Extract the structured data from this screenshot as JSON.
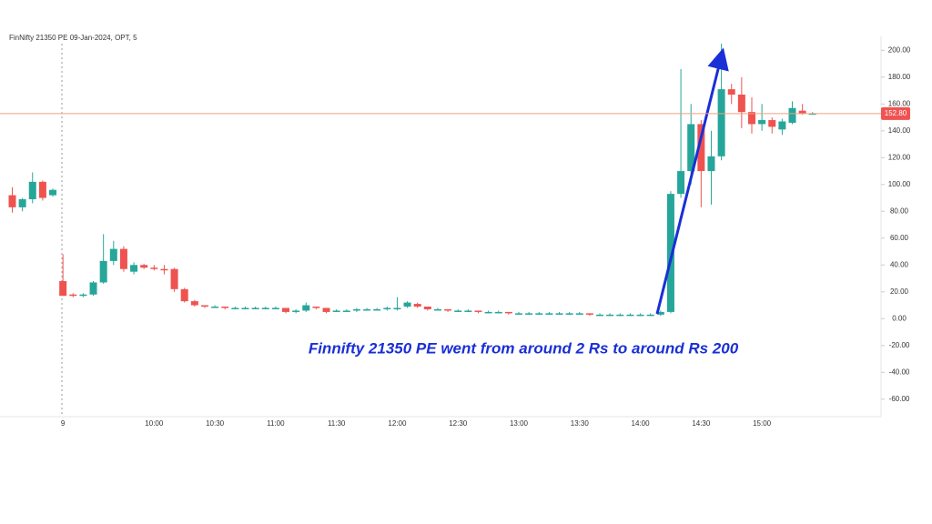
{
  "chart_data": {
    "type": "candlestick",
    "title": "FinNifty 21350 PE 09-Jan-2024, OPT, 5",
    "annotation": "Finnifty 21350 PE went from around 2 Rs to around Rs 200",
    "categories": [
      null,
      null,
      null,
      null,
      null,
      "9",
      null,
      null,
      null,
      null,
      null,
      null,
      null,
      null,
      "10:00",
      null,
      null,
      null,
      null,
      null,
      "10:30",
      null,
      null,
      null,
      null,
      null,
      "11:00",
      null,
      null,
      null,
      null,
      null,
      "11:30",
      null,
      null,
      null,
      null,
      null,
      "12:00",
      null,
      null,
      null,
      null,
      null,
      "12:30",
      null,
      null,
      null,
      null,
      null,
      "13:00",
      null,
      null,
      null,
      null,
      null,
      "13:30",
      null,
      null,
      null,
      null,
      null,
      "14:00",
      null,
      null,
      null,
      null,
      null,
      "14:30",
      null,
      null,
      null,
      null,
      null,
      "15:00",
      null,
      null,
      null,
      null,
      null
    ],
    "open": [
      92,
      83,
      89,
      102,
      92,
      28,
      18,
      17,
      18,
      27,
      43,
      52,
      35,
      40,
      38,
      37,
      37,
      22,
      13,
      10,
      9,
      9,
      8,
      8,
      8,
      8,
      8,
      8,
      5,
      6,
      9,
      8,
      6,
      6,
      6,
      7,
      7,
      7,
      7,
      9,
      11,
      9,
      7,
      7,
      6,
      6,
      6,
      5,
      5,
      5,
      4,
      4,
      4,
      4,
      4,
      4,
      4,
      4,
      3,
      3,
      3,
      3,
      3,
      3,
      3,
      5,
      93,
      110,
      145,
      110,
      121,
      171,
      167,
      154,
      145,
      148,
      141,
      146,
      155,
      153
    ],
    "high": [
      98,
      90,
      109,
      103,
      97,
      48,
      19,
      19,
      28,
      63,
      58,
      54,
      42,
      41,
      40,
      40,
      38,
      23,
      14,
      10,
      10,
      9,
      9,
      9,
      9,
      9,
      9,
      8,
      7,
      12,
      9,
      8,
      7,
      7,
      8,
      8,
      8,
      9,
      16,
      13,
      12,
      9,
      8,
      7,
      7,
      7,
      6,
      6,
      6,
      5,
      5,
      5,
      5,
      5,
      5,
      5,
      5,
      4,
      4,
      4,
      4,
      4,
      4,
      4,
      6,
      95,
      186,
      160,
      148,
      140,
      205,
      175,
      180,
      165,
      160,
      150,
      149,
      162,
      160,
      154
    ],
    "low": [
      79,
      80,
      86,
      88,
      91,
      17,
      16,
      16,
      17,
      26,
      40,
      35,
      33,
      37,
      36,
      33,
      20,
      12,
      9,
      8,
      8,
      7,
      7,
      7,
      7,
      7,
      7,
      4,
      4,
      5,
      7,
      4,
      5,
      5,
      5,
      6,
      6,
      6,
      6,
      8,
      8,
      6,
      6,
      5,
      5,
      5,
      4,
      4,
      4,
      3,
      3,
      3,
      3,
      3,
      3,
      3,
      3,
      2,
      2,
      2,
      2,
      2,
      2,
      2,
      2,
      4,
      90,
      100,
      83,
      85,
      118,
      160,
      142,
      138,
      140,
      138,
      137,
      145,
      152,
      152
    ],
    "close": [
      83,
      89,
      102,
      90,
      96,
      17,
      17,
      18,
      27,
      43,
      52,
      37,
      40,
      38,
      37,
      36,
      22,
      13,
      10,
      9,
      9,
      8,
      8,
      8,
      8,
      8,
      8,
      5,
      6,
      10,
      8,
      5,
      6,
      6,
      7,
      7,
      7,
      8,
      8,
      12,
      9,
      7,
      7,
      6,
      6,
      6,
      5,
      5,
      5,
      4,
      4,
      4,
      4,
      4,
      4,
      4,
      4,
      3,
      3,
      3,
      3,
      3,
      3,
      3,
      5,
      93,
      110,
      145,
      110,
      121,
      171,
      167,
      154,
      145,
      148,
      143,
      147,
      157,
      153,
      153
    ],
    "up_color": "#26a69a",
    "down_color": "#ef5350",
    "ylim": [
      -71,
      207
    ],
    "yticks": [
      {
        "value": 200,
        "label": "200.00"
      },
      {
        "value": 180,
        "label": "180.00"
      },
      {
        "value": 160,
        "label": "160.00"
      },
      {
        "value": 140,
        "label": "140.00"
      },
      {
        "value": 120,
        "label": "120.00"
      },
      {
        "value": 100,
        "label": "100.00"
      },
      {
        "value": 80,
        "label": "80.00"
      },
      {
        "value": 60,
        "label": "60.00"
      },
      {
        "value": 40,
        "label": "40.00"
      },
      {
        "value": 20,
        "label": "20.00"
      },
      {
        "value": 0,
        "label": "0.00"
      },
      {
        "value": -20,
        "label": "-20.00"
      },
      {
        "value": -40,
        "label": "-40.00"
      },
      {
        "value": -60,
        "label": "-60.00"
      }
    ],
    "price_line": {
      "value": 152.8,
      "label": "152.80",
      "color": "#f0a080"
    }
  }
}
